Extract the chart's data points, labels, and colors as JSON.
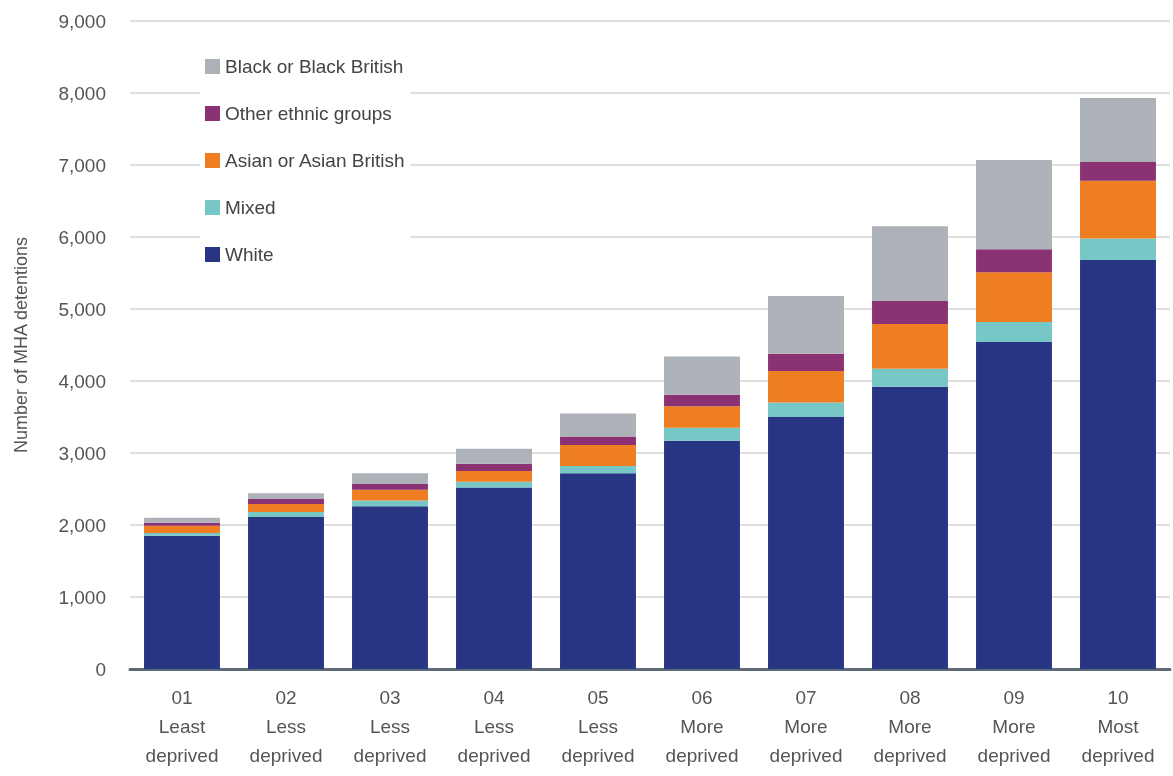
{
  "chart_data": {
    "type": "bar",
    "stacked": true,
    "ylabel": "Number of MHA detentions",
    "categories": [
      "01\nLeast\ndeprived",
      "02\nLess\ndeprived",
      "03\nLess\ndeprived",
      "04\nLess\ndeprived",
      "05\nLess\ndeprived",
      "06\nMore\ndeprived",
      "07\nMore\ndeprived",
      "08\nMore\ndeprived",
      "09\nMore\ndeprived",
      "10\nMost\ndeprived"
    ],
    "series": [
      {
        "name": "White",
        "color": "#283583",
        "values": [
          1850,
          2110,
          2260,
          2520,
          2720,
          3170,
          3500,
          3920,
          4540,
          5680
        ]
      },
      {
        "name": "Mixed",
        "color": "#77c7c7",
        "values": [
          40,
          70,
          80,
          80,
          100,
          180,
          200,
          250,
          280,
          300
        ]
      },
      {
        "name": "Asian or Asian British",
        "color": "#ef7d22",
        "values": [
          100,
          110,
          150,
          150,
          290,
          300,
          440,
          620,
          690,
          800
        ]
      },
      {
        "name": "Other ethnic groups",
        "color": "#8a3274",
        "values": [
          40,
          70,
          80,
          100,
          120,
          160,
          240,
          320,
          320,
          260
        ]
      },
      {
        "name": "Black or Black British",
        "color": "#adb2b8",
        "values": [
          70,
          80,
          150,
          210,
          320,
          530,
          800,
          1040,
          1240,
          890
        ]
      }
    ],
    "ylim": [
      0,
      9000
    ],
    "yticks": [
      0,
      {
        "value": 1000,
        "label": "1,000"
      },
      {
        "value": 2000,
        "label": "2,000"
      },
      {
        "value": 3000,
        "label": "3,000"
      },
      {
        "value": 4000,
        "label": "4,000"
      },
      {
        "value": 5000,
        "label": "5,000"
      },
      {
        "value": 6000,
        "label": "6,000"
      },
      {
        "value": 7000,
        "label": "7,000"
      },
      {
        "value": 8000,
        "label": "8,000"
      },
      {
        "value": 9000,
        "label": "9,000"
      }
    ],
    "grid": "y",
    "legend": "top left"
  }
}
